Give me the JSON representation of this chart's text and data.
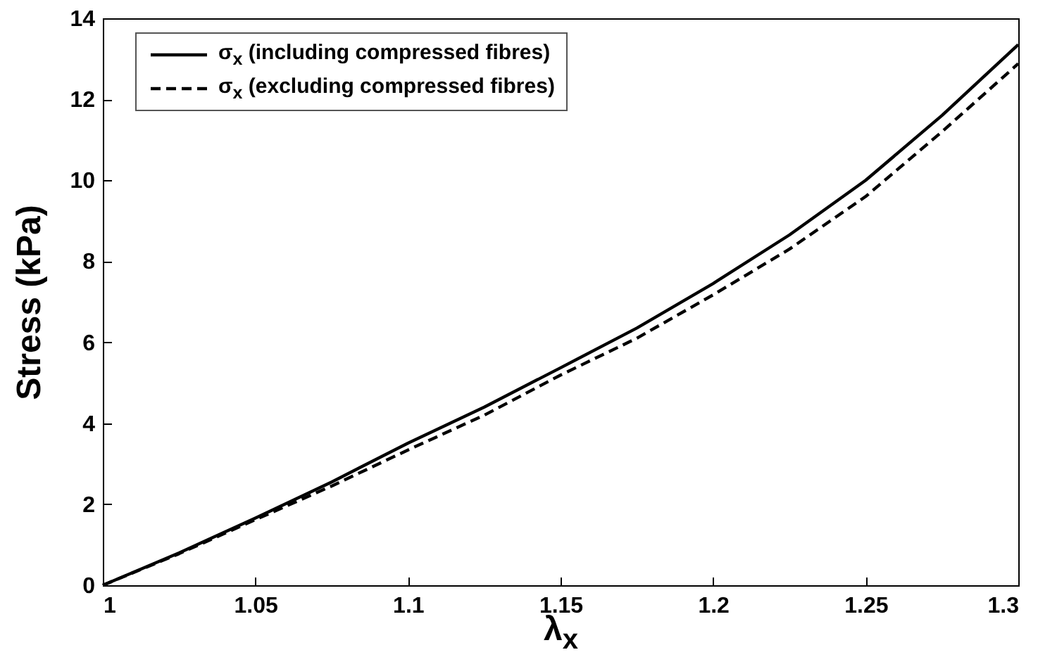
{
  "chart_data": {
    "type": "line",
    "xlabel": "λ$_{x}$",
    "ylabel": "Stress (kPa)",
    "x": [
      1.0,
      1.025,
      1.05,
      1.075,
      1.1,
      1.125,
      1.15,
      1.175,
      1.2,
      1.225,
      1.25,
      1.275,
      1.3
    ],
    "series": [
      {
        "name": "σ$_{x}$ (including compressed fibres)",
        "color": "#000000",
        "line_style": "solid",
        "values": [
          0,
          0.8,
          1.66,
          2.55,
          3.51,
          4.4,
          5.37,
          6.35,
          7.45,
          8.65,
          10.0,
          11.6,
          13.35
        ]
      },
      {
        "name": "σ$_{x}$ (excluding compressed fibres)",
        "color": "#000000",
        "line_style": "dashed",
        "values": [
          0,
          0.78,
          1.62,
          2.45,
          3.34,
          4.2,
          5.19,
          6.1,
          7.17,
          8.3,
          9.6,
          11.2,
          12.88
        ]
      }
    ],
    "xlim": [
      1,
      1.3
    ],
    "xticks": [
      1,
      1.05,
      1.1,
      1.15,
      1.2,
      1.25,
      1.3
    ],
    "ylim": [
      0,
      14
    ],
    "yticks": [
      0,
      2,
      4,
      6,
      8,
      10,
      12,
      14
    ],
    "grid": false,
    "legend": "top left"
  }
}
